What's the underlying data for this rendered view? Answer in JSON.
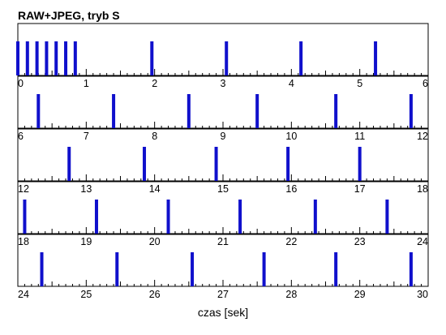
{
  "chart_data": {
    "type": "bar",
    "title": "RAW+JPEG, tryb S",
    "xlabel": "czas [sek]",
    "ylabel": "",
    "grid": false,
    "legend": "none",
    "bar_color": "#1010cc",
    "rows": [
      {
        "xlim": [
          0,
          6
        ],
        "tick_labels": [
          "0",
          "1",
          "2",
          "3",
          "4",
          "5",
          "6"
        ],
        "events": [
          0.0,
          0.14,
          0.28,
          0.42,
          0.56,
          0.7,
          0.84,
          1.96,
          3.05,
          4.14,
          5.23
        ]
      },
      {
        "xlim": [
          6,
          12
        ],
        "tick_labels": [
          "6",
          "7",
          "8",
          "9",
          "10",
          "11",
          "12"
        ],
        "events": [
          6.3,
          7.4,
          8.5,
          9.5,
          10.65,
          11.75
        ]
      },
      {
        "xlim": [
          12,
          18
        ],
        "tick_labels": [
          "12",
          "13",
          "14",
          "15",
          "16",
          "17",
          "18"
        ],
        "events": [
          12.75,
          13.85,
          14.9,
          15.95,
          17.0
        ]
      },
      {
        "xlim": [
          18,
          24
        ],
        "tick_labels": [
          "18",
          "19",
          "20",
          "21",
          "22",
          "23",
          "24"
        ],
        "events": [
          18.1,
          19.15,
          20.2,
          21.25,
          22.35,
          23.4
        ]
      },
      {
        "xlim": [
          24,
          30
        ],
        "tick_labels": [
          "24",
          "25",
          "26",
          "27",
          "28",
          "29",
          "30"
        ],
        "events": [
          24.35,
          25.45,
          26.55,
          27.6,
          28.65,
          29.75
        ]
      }
    ]
  }
}
